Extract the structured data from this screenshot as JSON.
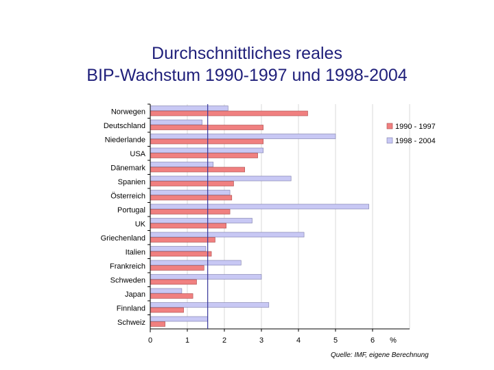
{
  "title_line1": "Durchschnittliches reales",
  "title_line2": "BIP-Wachstum 1990-1997 und 1998-2004",
  "source": "Quelle: IMF, eigene Berechnung",
  "colors": {
    "title": "#1f1f7a",
    "series_1990_1997": "#f08080",
    "series_1998_2004": "#c8c8f4",
    "highlight_label": "#aa1166",
    "reference_line": "#333399"
  },
  "chart_data": {
    "type": "bar",
    "orientation": "horizontal",
    "title": "Durchschnittliches reales BIP-Wachstum 1990-1997 und 1998-2004",
    "categories": [
      "Norwegen",
      "Deutschland",
      "Niederlande",
      "USA",
      "Dänemark",
      "Spanien",
      "Österreich",
      "Portugal",
      "UK",
      "Griechenland",
      "Italien",
      "Frankreich",
      "Schweden",
      "Japan",
      "Finnland",
      "Schweiz"
    ],
    "highlighted_category": "Schweiz",
    "series": [
      {
        "name": "1998 - 2004",
        "values": [
          2.1,
          1.4,
          5.0,
          3.05,
          1.7,
          3.8,
          2.15,
          5.9,
          2.75,
          4.15,
          1.5,
          2.45,
          3.0,
          0.85,
          3.2,
          1.55
        ]
      },
      {
        "name": "1990 - 1997",
        "values": [
          4.25,
          3.05,
          3.05,
          2.9,
          2.55,
          2.25,
          2.2,
          2.15,
          2.05,
          1.75,
          1.65,
          1.45,
          1.25,
          1.15,
          0.9,
          0.4
        ]
      }
    ],
    "legend": [
      "1990 - 1997",
      "1998 - 2004"
    ],
    "legend_position": "right",
    "x_ticks": [
      "0",
      "1",
      "2",
      "3",
      "4",
      "5",
      "6"
    ],
    "x_unit": "%",
    "xlim": [
      0,
      7
    ],
    "reference_line_value": 1.55,
    "grid": true
  }
}
